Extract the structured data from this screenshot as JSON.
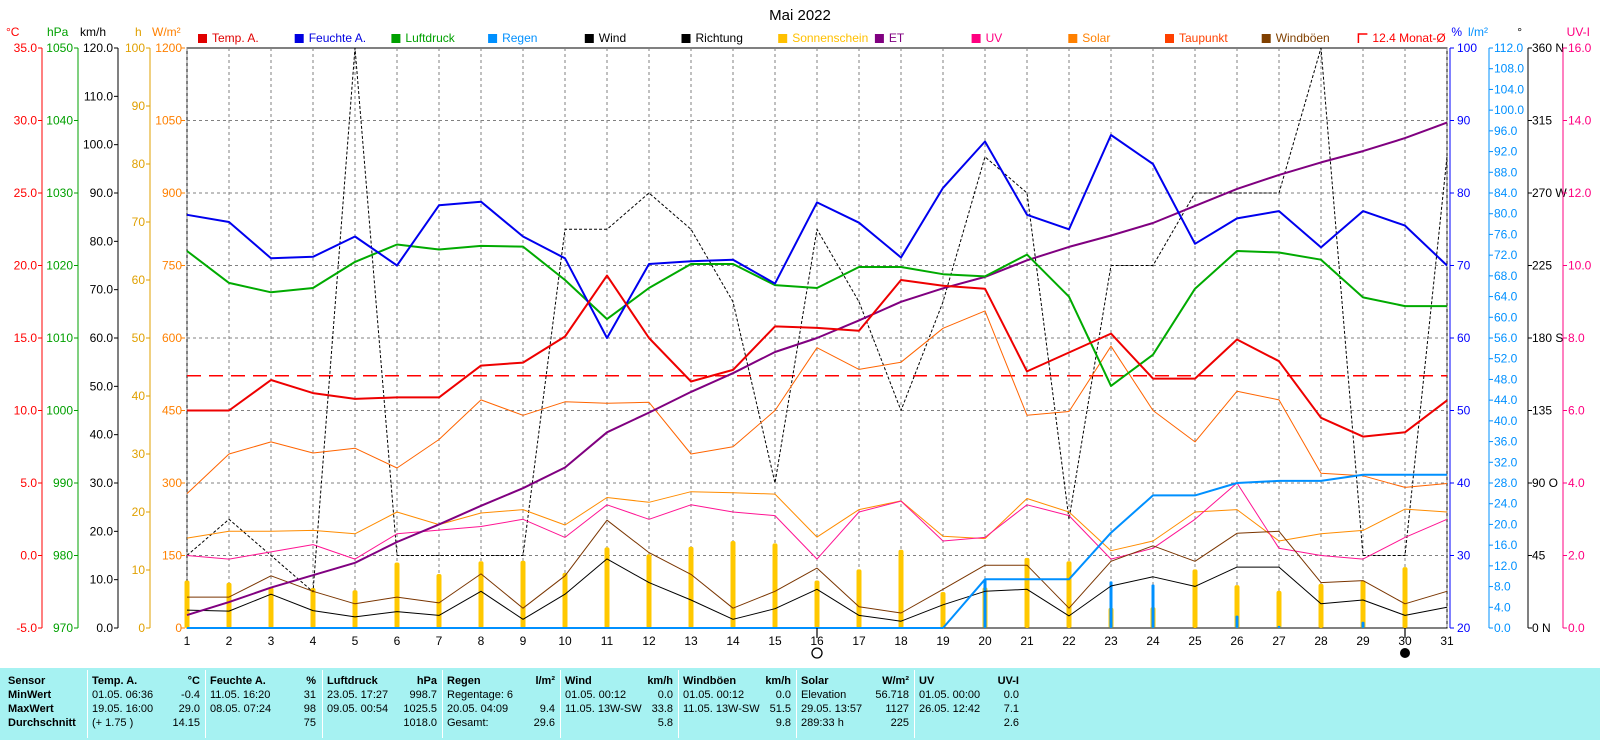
{
  "chart_data": {
    "type": "line",
    "title": "Mai 2022",
    "x": [
      "1",
      "2",
      "3",
      "4",
      "5",
      "6",
      "7",
      "8",
      "9",
      "10",
      "11",
      "12",
      "13",
      "14",
      "15",
      "16",
      "17",
      "18",
      "19",
      "20",
      "21",
      "22",
      "23",
      "24",
      "25",
      "26",
      "27",
      "28",
      "29",
      "30",
      "31"
    ],
    "axes": {
      "temp": {
        "unit": "°C",
        "ticks": [
          "35.0",
          "30.0",
          "25.0",
          "20.0",
          "15.0",
          "10.0",
          "5.0",
          "0.0",
          "-5.0"
        ],
        "range": [
          -5,
          35
        ],
        "color": "#ff0000"
      },
      "pressure": {
        "unit": "hPa",
        "ticks": [
          "1050",
          "1040",
          "1030",
          "1020",
          "1010",
          "1000",
          "990",
          "980",
          "970"
        ],
        "range": [
          970,
          1050
        ],
        "color": "#00a000"
      },
      "wind": {
        "unit": "km/h",
        "ticks": [
          "120.0",
          "110.0",
          "100.0",
          "90.0",
          "80.0",
          "70.0",
          "60.0",
          "50.0",
          "40.0",
          "30.0",
          "20.0",
          "10.0",
          "0.0"
        ],
        "range": [
          0,
          120
        ],
        "color": "#000000"
      },
      "sunshine": {
        "unit": "h",
        "ticks": [
          "100",
          "90",
          "80",
          "70",
          "60",
          "50",
          "40",
          "30",
          "20",
          "10",
          "0"
        ],
        "range": [
          0,
          100
        ],
        "color": "#e0a000"
      },
      "solar": {
        "unit": "W/m²",
        "ticks": [
          "1200",
          "1050",
          "900",
          "750",
          "600",
          "450",
          "300",
          "150",
          "0"
        ],
        "range": [
          0,
          1200
        ],
        "color": "#ff8000"
      },
      "humidity": {
        "unit": "%",
        "ticks": [
          "100",
          "90",
          "80",
          "70",
          "60",
          "50",
          "40",
          "30",
          "20"
        ],
        "range": [
          20,
          100
        ],
        "color": "#0000ff"
      },
      "rain": {
        "unit": "l/m²",
        "ticks": [
          "112.0",
          "108.0",
          "104.0",
          "100.0",
          "96.0",
          "92.0",
          "88.0",
          "84.0",
          "80.0",
          "76.0",
          "72.0",
          "68.0",
          "64.0",
          "60.0",
          "56.0",
          "52.0",
          "48.0",
          "44.0",
          "40.0",
          "36.0",
          "32.0",
          "28.0",
          "24.0",
          "20.0",
          "16.0",
          "12.0",
          "8.0",
          "4.0",
          "0.0"
        ],
        "range": [
          0,
          112
        ],
        "color": "#0090ff"
      },
      "direction": {
        "unit": "°",
        "ticks": [
          "360 N",
          "315",
          "270 W",
          "225",
          "180 S",
          "135",
          "90 O",
          "45",
          "0 N"
        ],
        "range": [
          0,
          360
        ],
        "color": "#000000"
      },
      "uv": {
        "unit": "UV-I",
        "ticks": [
          "16.0",
          "14.0",
          "12.0",
          "10.0",
          "8.0",
          "6.0",
          "4.0",
          "2.0",
          "0.0"
        ],
        "range": [
          0,
          16
        ],
        "color": "#ff0080"
      }
    },
    "legend": [
      {
        "name": "Temp. A.",
        "color": "#e00000"
      },
      {
        "name": "Feuchte A.",
        "color": "#0000e0"
      },
      {
        "name": "Luftdruck",
        "color": "#00a000"
      },
      {
        "name": "Regen",
        "color": "#0090ff"
      },
      {
        "name": "Wind",
        "color": "#000000"
      },
      {
        "name": "Richtung",
        "color": "#000000"
      },
      {
        "name": "Sonnenschein",
        "color": "#ffc000"
      },
      {
        "name": "ET",
        "color": "#800080"
      },
      {
        "name": "UV",
        "color": "#ff0080"
      },
      {
        "name": "Solar",
        "color": "#ff8000"
      },
      {
        "name": "Taupunkt",
        "color": "#ff4000"
      },
      {
        "name": "Windböen",
        "color": "#804000"
      },
      {
        "name": "12.4 Monat-Ø",
        "color": "#ff0000"
      }
    ],
    "series": [
      {
        "name": "Temp. A.",
        "axis": "temp",
        "color": "#ee0000",
        "width": 2,
        "values": [
          10.0,
          10.0,
          12.1,
          11.2,
          10.8,
          10.9,
          10.9,
          13.1,
          13.3,
          15.1,
          19.3,
          15.0,
          12.0,
          12.8,
          15.8,
          15.7,
          15.5,
          19.0,
          18.6,
          18.4,
          12.7,
          14.0,
          15.3,
          12.2,
          12.2,
          14.9,
          13.4,
          9.5,
          8.2,
          8.5,
          10.7
        ]
      },
      {
        "name": "Feuchte A.",
        "axis": "humidity",
        "color": "#0000ee",
        "width": 2,
        "values": [
          77,
          76,
          71,
          71.2,
          74,
          70,
          78.3,
          78.8,
          74,
          71,
          60,
          70.2,
          70.6,
          70.8,
          67.5,
          78.7,
          75.9,
          71.1,
          80.7,
          87.1,
          77,
          75,
          88,
          84,
          73,
          76.5,
          77.5,
          72.5,
          77.5,
          75.5,
          70
        ]
      },
      {
        "name": "Luftdruck",
        "axis": "pressure",
        "color": "#00aa00",
        "width": 2,
        "values": [
          1022,
          1017.6,
          1016.3,
          1016.9,
          1020.5,
          1022.9,
          1022.2,
          1022.7,
          1022.6,
          1018,
          1012.6,
          1016.9,
          1020.2,
          1020.2,
          1017.3,
          1016.9,
          1019.8,
          1019.8,
          1018.8,
          1018.5,
          1021.5,
          1015.7,
          1003.4,
          1007.7,
          1016.8,
          1022,
          1021.8,
          1020.8,
          1015.6,
          1014.4,
          1014.4
        ]
      },
      {
        "name": "Regen",
        "axis": "rain",
        "color": "#0090ff",
        "width": 2,
        "values": [
          0,
          0,
          0,
          0,
          0,
          0,
          0,
          0,
          0,
          0,
          0,
          0,
          0,
          0,
          0,
          0,
          0,
          0,
          0,
          9.4,
          9.4,
          9.4,
          18.4,
          25.6,
          25.6,
          28,
          28.4,
          28.4,
          29.6,
          29.6,
          29.6
        ]
      },
      {
        "name": "Wind",
        "axis": "wind",
        "color": "#000000",
        "width": 1,
        "values": [
          3.7,
          3.5,
          7.0,
          3.6,
          2.3,
          3.4,
          2.6,
          7.6,
          1.8,
          7.0,
          14.3,
          9.4,
          5.8,
          1.8,
          4.0,
          8.0,
          2.6,
          1.4,
          4.8,
          7.6,
          8.0,
          2.5,
          8.7,
          10.6,
          8.6,
          12.6,
          12.6,
          5.0,
          5.8,
          2.6,
          4.3
        ]
      },
      {
        "name": "Windböen",
        "axis": "wind",
        "color": "#7a3500",
        "width": 1,
        "values": [
          6.4,
          6.4,
          10.8,
          7.6,
          5.0,
          6.4,
          5.2,
          11.2,
          4.1,
          10.8,
          22.3,
          15.6,
          11.1,
          4.1,
          7.6,
          12.4,
          4.4,
          3.1,
          8.0,
          13.0,
          13.0,
          4.1,
          13.8,
          17.0,
          13.8,
          19.6,
          20.0,
          9.4,
          9.8,
          5.0,
          7.6
        ]
      },
      {
        "name": "Richtung",
        "axis": "direction",
        "color": "#000000",
        "width": 1,
        "dashed": true,
        "values": [
          45,
          67.5,
          45,
          22.5,
          360,
          45,
          45,
          45,
          45,
          247.5,
          247.5,
          270,
          247.5,
          202.5,
          90,
          247.5,
          202.5,
          135,
          202.5,
          292.5,
          270,
          67.5,
          225,
          225,
          270,
          270,
          270,
          360,
          45,
          45,
          292.5
        ]
      },
      {
        "name": "ET",
        "axis": "rain",
        "color": "#800080",
        "width": 2,
        "values": [
          2.5,
          5.0,
          7.8,
          10.2,
          12.6,
          16.6,
          20.0,
          23.6,
          27.0,
          31.0,
          37.8,
          41.6,
          45.6,
          49.2,
          53.3,
          56.0,
          59.4,
          63.0,
          65.6,
          67.8,
          71.0,
          73.6,
          75.8,
          78.2,
          81.5,
          84.8,
          87.5,
          89.9,
          92.1,
          94.6,
          97.6
        ]
      },
      {
        "name": "UV",
        "axis": "uv",
        "color": "#ff1493",
        "width": 1,
        "values": [
          2.0,
          1.9,
          2.1,
          2.3,
          1.9,
          2.6,
          2.7,
          2.8,
          3.0,
          2.5,
          3.4,
          3.0,
          3.4,
          3.2,
          3.1,
          1.9,
          3.2,
          3.5,
          2.4,
          2.5,
          3.4,
          3.1,
          1.9,
          2.2,
          3.0,
          4.0,
          2.2,
          2.0,
          1.9,
          2.5,
          3.0
        ]
      },
      {
        "name": "Solar",
        "axis": "solar",
        "color": "#ff6400",
        "width": 1,
        "values": [
          278,
          360,
          385,
          362,
          372,
          331,
          390,
          472,
          440,
          468,
          465,
          467,
          360,
          375,
          450,
          580,
          535,
          550,
          620,
          656,
          440,
          448,
          583,
          450,
          385,
          490,
          472,
          320,
          315,
          291,
          299
        ]
      },
      {
        "name": "Taupunkt",
        "axis": "solar",
        "color": "#ff8c00",
        "width": 1,
        "values": [
          186,
          200,
          200,
          202,
          195,
          240,
          214,
          238,
          245,
          213,
          270,
          260,
          282,
          280,
          277,
          188,
          245,
          263,
          190,
          185,
          268,
          240,
          160,
          180,
          240,
          245,
          180,
          195,
          202,
          246,
          240
        ]
      }
    ],
    "bars": [
      {
        "name": "Sonnenschein",
        "axis": "sunshine",
        "color": "#ffc800",
        "values": [
          8.2,
          7.8,
          7.0,
          6.9,
          6.5,
          11.3,
          9.3,
          11.5,
          11.6,
          9.5,
          13.9,
          12.7,
          14.0,
          15.0,
          14.6,
          8.2,
          10.1,
          13.5,
          6.2,
          7.0,
          12.1,
          11.5,
          3.5,
          3.6,
          10.1,
          7.4,
          6.4,
          7.6,
          8.2,
          10.5,
          0
        ]
      },
      {
        "name": "Regen",
        "axis": "rain",
        "color": "#0090ff",
        "values": [
          0,
          0,
          0,
          0,
          0,
          0,
          0,
          0,
          0,
          0,
          0,
          0,
          0,
          0,
          0,
          0,
          0,
          0,
          0,
          9.4,
          0,
          0,
          9.0,
          8.4,
          0,
          2.4,
          0.4,
          0,
          1.2,
          0,
          0
        ]
      }
    ],
    "reference_line": {
      "name": "12.4 Monat-Ø",
      "axis": "temp",
      "value": 12.4,
      "color": "#ff0000"
    },
    "moon_markers": [
      {
        "day": "16",
        "phase": "full"
      },
      {
        "day": "30",
        "phase": "new"
      }
    ],
    "grid": true,
    "legend_position": "top"
  },
  "stats": {
    "row_labels": [
      "Sensor",
      "MinWert",
      "MaxWert",
      "Durchschnitt"
    ],
    "groups": [
      {
        "title": "Temp. A.",
        "unit": "°C",
        "rows": [
          [
            "01.05.  06:36",
            "-0.4"
          ],
          [
            "19.05.  16:00",
            "29.0"
          ],
          [
            "(+ 1.75 )",
            "14.15"
          ]
        ]
      },
      {
        "title": "Feuchte A.",
        "unit": "%",
        "rows": [
          [
            "11.05.  16:20",
            "31"
          ],
          [
            "08.05.  07:24",
            "98"
          ],
          [
            "",
            "75"
          ]
        ]
      },
      {
        "title": "Luftdruck",
        "unit": "hPa",
        "rows": [
          [
            "23.05.  17:27",
            "998.7"
          ],
          [
            "09.05.  00:54",
            "1025.5"
          ],
          [
            "",
            "1018.0"
          ]
        ]
      },
      {
        "title": "Regen",
        "unit": "l/m²",
        "rows": [
          [
            "Regentage: 6",
            ""
          ],
          [
            "20.05.  04:09",
            "9.4"
          ],
          [
            "Gesamt:",
            "29.6"
          ]
        ]
      },
      {
        "title": "Wind",
        "unit": "km/h",
        "rows": [
          [
            "01.05.  00:12",
            "0.0"
          ],
          [
            "11.05.  13W-SW",
            "33.8"
          ],
          [
            "",
            "5.8"
          ]
        ]
      },
      {
        "title": "Windböen",
        "unit": "km/h",
        "rows": [
          [
            "01.05.  00:12",
            "0.0"
          ],
          [
            "11.05.  13W-SW",
            "51.5"
          ],
          [
            "",
            "9.8"
          ]
        ]
      },
      {
        "title": "Solar",
        "unit": "W/m²",
        "rows": [
          [
            "Elevation",
            "56.718"
          ],
          [
            "29.05.  13:57",
            "1127"
          ],
          [
            "289:33 h",
            "225"
          ]
        ]
      },
      {
        "title": "UV",
        "unit": "UV-I",
        "rows": [
          [
            "01.05.  00:00",
            "0.0"
          ],
          [
            "26.05.  12:42",
            "7.1"
          ],
          [
            "",
            "2.6"
          ]
        ]
      }
    ]
  }
}
